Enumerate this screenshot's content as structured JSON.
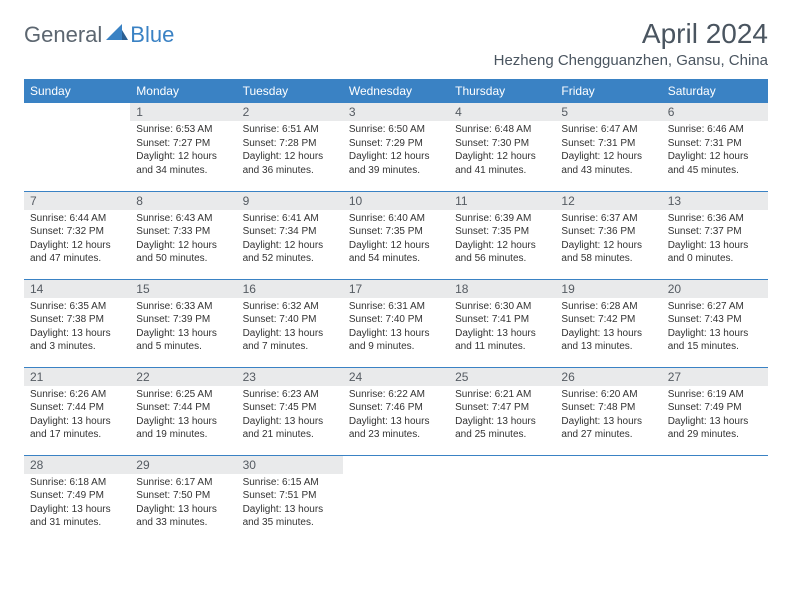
{
  "logo": {
    "general": "General",
    "blue": "Blue"
  },
  "title": "April 2024",
  "location": "Hezheng Chengguanzhen, Gansu, China",
  "day_headers": [
    "Sunday",
    "Monday",
    "Tuesday",
    "Wednesday",
    "Thursday",
    "Friday",
    "Saturday"
  ],
  "colors": {
    "brand_blue": "#3a82c4",
    "header_text": "#4a5560",
    "daynum_bg": "#e9eaeb",
    "body_text": "#333333",
    "page_bg": "#ffffff"
  },
  "weeks": [
    [
      null,
      {
        "n": "1",
        "sunrise": "Sunrise: 6:53 AM",
        "sunset": "Sunset: 7:27 PM",
        "dl1": "Daylight: 12 hours",
        "dl2": "and 34 minutes."
      },
      {
        "n": "2",
        "sunrise": "Sunrise: 6:51 AM",
        "sunset": "Sunset: 7:28 PM",
        "dl1": "Daylight: 12 hours",
        "dl2": "and 36 minutes."
      },
      {
        "n": "3",
        "sunrise": "Sunrise: 6:50 AM",
        "sunset": "Sunset: 7:29 PM",
        "dl1": "Daylight: 12 hours",
        "dl2": "and 39 minutes."
      },
      {
        "n": "4",
        "sunrise": "Sunrise: 6:48 AM",
        "sunset": "Sunset: 7:30 PM",
        "dl1": "Daylight: 12 hours",
        "dl2": "and 41 minutes."
      },
      {
        "n": "5",
        "sunrise": "Sunrise: 6:47 AM",
        "sunset": "Sunset: 7:31 PM",
        "dl1": "Daylight: 12 hours",
        "dl2": "and 43 minutes."
      },
      {
        "n": "6",
        "sunrise": "Sunrise: 6:46 AM",
        "sunset": "Sunset: 7:31 PM",
        "dl1": "Daylight: 12 hours",
        "dl2": "and 45 minutes."
      }
    ],
    [
      {
        "n": "7",
        "sunrise": "Sunrise: 6:44 AM",
        "sunset": "Sunset: 7:32 PM",
        "dl1": "Daylight: 12 hours",
        "dl2": "and 47 minutes."
      },
      {
        "n": "8",
        "sunrise": "Sunrise: 6:43 AM",
        "sunset": "Sunset: 7:33 PM",
        "dl1": "Daylight: 12 hours",
        "dl2": "and 50 minutes."
      },
      {
        "n": "9",
        "sunrise": "Sunrise: 6:41 AM",
        "sunset": "Sunset: 7:34 PM",
        "dl1": "Daylight: 12 hours",
        "dl2": "and 52 minutes."
      },
      {
        "n": "10",
        "sunrise": "Sunrise: 6:40 AM",
        "sunset": "Sunset: 7:35 PM",
        "dl1": "Daylight: 12 hours",
        "dl2": "and 54 minutes."
      },
      {
        "n": "11",
        "sunrise": "Sunrise: 6:39 AM",
        "sunset": "Sunset: 7:35 PM",
        "dl1": "Daylight: 12 hours",
        "dl2": "and 56 minutes."
      },
      {
        "n": "12",
        "sunrise": "Sunrise: 6:37 AM",
        "sunset": "Sunset: 7:36 PM",
        "dl1": "Daylight: 12 hours",
        "dl2": "and 58 minutes."
      },
      {
        "n": "13",
        "sunrise": "Sunrise: 6:36 AM",
        "sunset": "Sunset: 7:37 PM",
        "dl1": "Daylight: 13 hours",
        "dl2": "and 0 minutes."
      }
    ],
    [
      {
        "n": "14",
        "sunrise": "Sunrise: 6:35 AM",
        "sunset": "Sunset: 7:38 PM",
        "dl1": "Daylight: 13 hours",
        "dl2": "and 3 minutes."
      },
      {
        "n": "15",
        "sunrise": "Sunrise: 6:33 AM",
        "sunset": "Sunset: 7:39 PM",
        "dl1": "Daylight: 13 hours",
        "dl2": "and 5 minutes."
      },
      {
        "n": "16",
        "sunrise": "Sunrise: 6:32 AM",
        "sunset": "Sunset: 7:40 PM",
        "dl1": "Daylight: 13 hours",
        "dl2": "and 7 minutes."
      },
      {
        "n": "17",
        "sunrise": "Sunrise: 6:31 AM",
        "sunset": "Sunset: 7:40 PM",
        "dl1": "Daylight: 13 hours",
        "dl2": "and 9 minutes."
      },
      {
        "n": "18",
        "sunrise": "Sunrise: 6:30 AM",
        "sunset": "Sunset: 7:41 PM",
        "dl1": "Daylight: 13 hours",
        "dl2": "and 11 minutes."
      },
      {
        "n": "19",
        "sunrise": "Sunrise: 6:28 AM",
        "sunset": "Sunset: 7:42 PM",
        "dl1": "Daylight: 13 hours",
        "dl2": "and 13 minutes."
      },
      {
        "n": "20",
        "sunrise": "Sunrise: 6:27 AM",
        "sunset": "Sunset: 7:43 PM",
        "dl1": "Daylight: 13 hours",
        "dl2": "and 15 minutes."
      }
    ],
    [
      {
        "n": "21",
        "sunrise": "Sunrise: 6:26 AM",
        "sunset": "Sunset: 7:44 PM",
        "dl1": "Daylight: 13 hours",
        "dl2": "and 17 minutes."
      },
      {
        "n": "22",
        "sunrise": "Sunrise: 6:25 AM",
        "sunset": "Sunset: 7:44 PM",
        "dl1": "Daylight: 13 hours",
        "dl2": "and 19 minutes."
      },
      {
        "n": "23",
        "sunrise": "Sunrise: 6:23 AM",
        "sunset": "Sunset: 7:45 PM",
        "dl1": "Daylight: 13 hours",
        "dl2": "and 21 minutes."
      },
      {
        "n": "24",
        "sunrise": "Sunrise: 6:22 AM",
        "sunset": "Sunset: 7:46 PM",
        "dl1": "Daylight: 13 hours",
        "dl2": "and 23 minutes."
      },
      {
        "n": "25",
        "sunrise": "Sunrise: 6:21 AM",
        "sunset": "Sunset: 7:47 PM",
        "dl1": "Daylight: 13 hours",
        "dl2": "and 25 minutes."
      },
      {
        "n": "26",
        "sunrise": "Sunrise: 6:20 AM",
        "sunset": "Sunset: 7:48 PM",
        "dl1": "Daylight: 13 hours",
        "dl2": "and 27 minutes."
      },
      {
        "n": "27",
        "sunrise": "Sunrise: 6:19 AM",
        "sunset": "Sunset: 7:49 PM",
        "dl1": "Daylight: 13 hours",
        "dl2": "and 29 minutes."
      }
    ],
    [
      {
        "n": "28",
        "sunrise": "Sunrise: 6:18 AM",
        "sunset": "Sunset: 7:49 PM",
        "dl1": "Daylight: 13 hours",
        "dl2": "and 31 minutes."
      },
      {
        "n": "29",
        "sunrise": "Sunrise: 6:17 AM",
        "sunset": "Sunset: 7:50 PM",
        "dl1": "Daylight: 13 hours",
        "dl2": "and 33 minutes."
      },
      {
        "n": "30",
        "sunrise": "Sunrise: 6:15 AM",
        "sunset": "Sunset: 7:51 PM",
        "dl1": "Daylight: 13 hours",
        "dl2": "and 35 minutes."
      },
      null,
      null,
      null,
      null
    ]
  ]
}
